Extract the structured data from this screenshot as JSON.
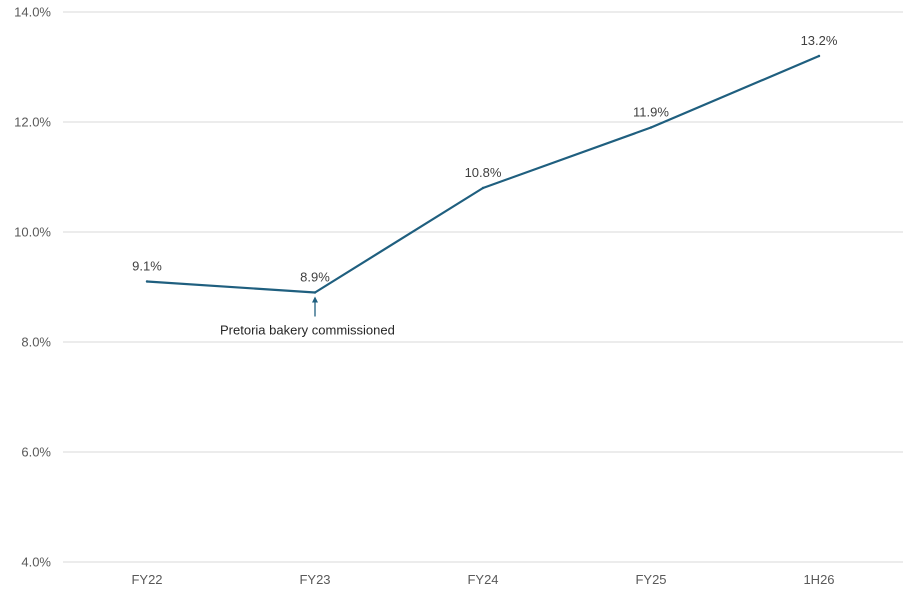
{
  "chart_data": {
    "type": "line",
    "categories": [
      "FY22",
      "FY23",
      "FY24",
      "FY25",
      "1H26"
    ],
    "series": [
      {
        "values": [
          9.1,
          8.9,
          10.8,
          11.9,
          13.2
        ],
        "labels": [
          "9.1%",
          "8.9%",
          "10.8%",
          "11.9%",
          "13.2%"
        ]
      }
    ],
    "ylim": [
      4.0,
      14.0
    ],
    "yticks": [
      4.0,
      6.0,
      8.0,
      10.0,
      12.0,
      14.0
    ],
    "ytick_labels": [
      "4.0%",
      "6.0%",
      "8.0%",
      "10.0%",
      "12.0%",
      "14.0%"
    ],
    "grid": true,
    "legend": "none",
    "annotations": [
      {
        "category": "FY23",
        "text": "Pretoria bakery commissioned"
      }
    ],
    "colors": {
      "series": "#1f5f7f",
      "grid": "#d9d9d9",
      "axis_text": "#595959"
    }
  }
}
